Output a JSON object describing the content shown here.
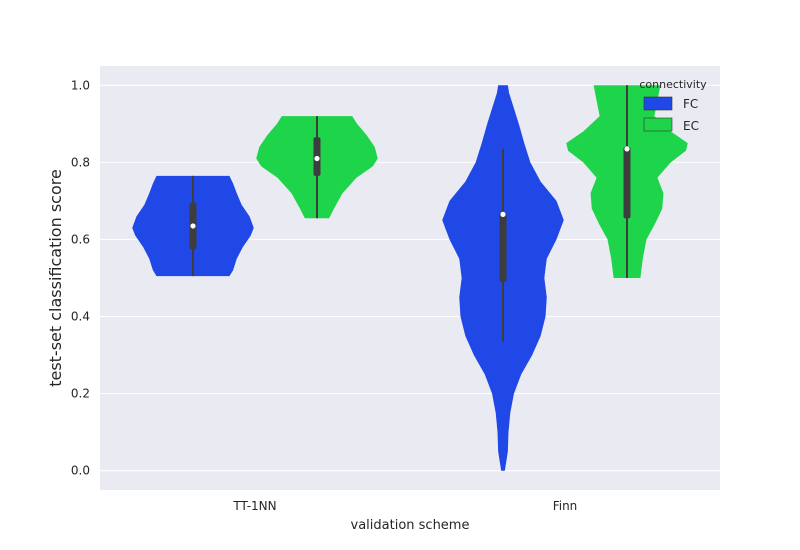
{
  "chart_data": {
    "type": "violin",
    "title": "",
    "xlabel": "validation scheme",
    "ylabel": "test-set classification score",
    "categories": [
      "TT-1NN",
      "Finn"
    ],
    "ylim": [
      -0.05,
      1.05
    ],
    "yticks": [
      0.0,
      0.2,
      0.4,
      0.6,
      0.8,
      1.0
    ],
    "ytick_labels": [
      "0.0",
      "0.2",
      "0.4",
      "0.6",
      "0.8",
      "1.0"
    ],
    "grid": true,
    "legend": {
      "title": "connectivity",
      "placement": "top-right",
      "entries": [
        {
          "label": "FC",
          "color": "#1f48e6"
        },
        {
          "label": "EC",
          "color": "#1ed44a"
        }
      ]
    },
    "series": [
      {
        "name": "FC",
        "color": "#1f48e6",
        "violins": [
          {
            "category": "TT-1NN",
            "min": 0.505,
            "q1": 0.58,
            "median": 0.635,
            "q3": 0.69,
            "max": 0.765,
            "whisker": [
              0.505,
              0.765
            ],
            "profile": [
              [
                0.505,
                0.6
              ],
              [
                0.52,
                0.66
              ],
              [
                0.55,
                0.72
              ],
              [
                0.58,
                0.82
              ],
              [
                0.61,
                0.95
              ],
              [
                0.63,
                1.0
              ],
              [
                0.66,
                0.93
              ],
              [
                0.69,
                0.8
              ],
              [
                0.72,
                0.72
              ],
              [
                0.745,
                0.66
              ],
              [
                0.765,
                0.6
              ]
            ]
          },
          {
            "category": "Finn",
            "min": 0.0,
            "q1": 0.495,
            "median": 0.665,
            "q3": 0.665,
            "max": 1.0,
            "whisker": [
              0.335,
              0.835
            ],
            "profile": [
              [
                0.0,
                0.03
              ],
              [
                0.05,
                0.08
              ],
              [
                0.1,
                0.09
              ],
              [
                0.15,
                0.12
              ],
              [
                0.2,
                0.18
              ],
              [
                0.25,
                0.3
              ],
              [
                0.3,
                0.48
              ],
              [
                0.35,
                0.62
              ],
              [
                0.4,
                0.7
              ],
              [
                0.45,
                0.72
              ],
              [
                0.5,
                0.68
              ],
              [
                0.55,
                0.72
              ],
              [
                0.6,
                0.88
              ],
              [
                0.65,
                1.0
              ],
              [
                0.7,
                0.88
              ],
              [
                0.75,
                0.62
              ],
              [
                0.8,
                0.45
              ],
              [
                0.85,
                0.35
              ],
              [
                0.9,
                0.26
              ],
              [
                0.95,
                0.16
              ],
              [
                0.98,
                0.1
              ],
              [
                1.0,
                0.08
              ]
            ]
          }
        ]
      },
      {
        "name": "EC",
        "color": "#1ed44a",
        "violins": [
          {
            "category": "TT-1NN",
            "min": 0.655,
            "q1": 0.77,
            "median": 0.81,
            "q3": 0.86,
            "max": 0.92,
            "whisker": [
              0.655,
              0.92
            ],
            "profile": [
              [
                0.655,
                0.2
              ],
              [
                0.68,
                0.28
              ],
              [
                0.72,
                0.42
              ],
              [
                0.76,
                0.65
              ],
              [
                0.79,
                0.92
              ],
              [
                0.81,
                1.0
              ],
              [
                0.84,
                0.95
              ],
              [
                0.87,
                0.82
              ],
              [
                0.9,
                0.66
              ],
              [
                0.92,
                0.58
              ]
            ]
          },
          {
            "category": "Finn",
            "min": 0.5,
            "q1": 0.66,
            "median": 0.835,
            "q3": 0.835,
            "max": 1.0,
            "whisker": [
              0.5,
              1.0
            ],
            "profile": [
              [
                0.5,
                0.22
              ],
              [
                0.55,
                0.26
              ],
              [
                0.6,
                0.32
              ],
              [
                0.64,
                0.46
              ],
              [
                0.68,
                0.58
              ],
              [
                0.72,
                0.6
              ],
              [
                0.76,
                0.5
              ],
              [
                0.8,
                0.72
              ],
              [
                0.83,
                0.97
              ],
              [
                0.85,
                1.0
              ],
              [
                0.88,
                0.72
              ],
              [
                0.92,
                0.45
              ],
              [
                0.96,
                0.5
              ],
              [
                1.0,
                0.55
              ]
            ]
          }
        ]
      }
    ]
  }
}
